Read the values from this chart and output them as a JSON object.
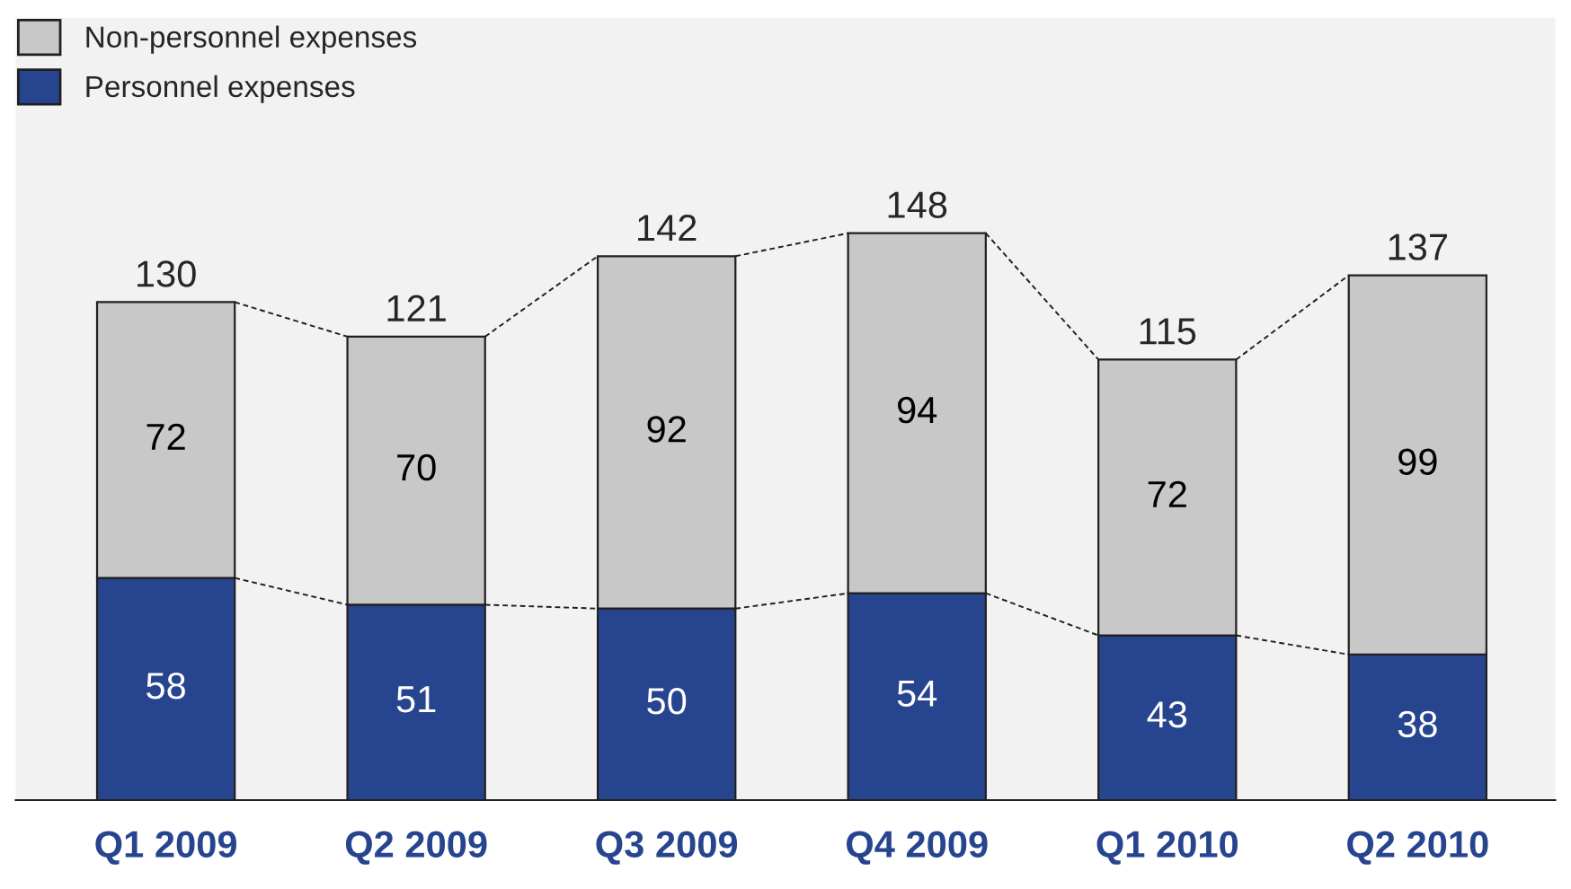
{
  "chart_data": {
    "type": "bar",
    "stacked": true,
    "data_labels": true,
    "legend": "top left",
    "grid": false,
    "categories": [
      "Q1 2009",
      "Q2 2009",
      "Q3 2009",
      "Q4 2009",
      "Q1 2010",
      "Q2 2010"
    ],
    "series": [
      {
        "name": "Personnel expenses",
        "color": "#27458f",
        "values": [
          58,
          51,
          50,
          54,
          43,
          38
        ]
      },
      {
        "name": "Non-personnel expenses",
        "color": "#c8c8c8",
        "values": [
          72,
          70,
          92,
          94,
          72,
          99
        ]
      }
    ],
    "totals": [
      "130",
      "121",
      "142",
      "148",
      "115",
      "137"
    ]
  }
}
